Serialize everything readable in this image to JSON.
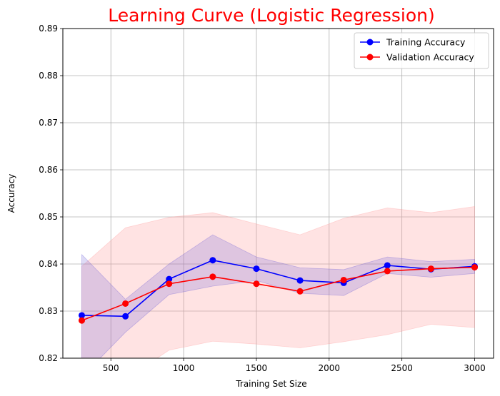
{
  "chart_data": {
    "type": "line",
    "title": "Learning Curve (Logistic Regression)",
    "title_color": "#ff0000",
    "xlabel": "Training Set Size",
    "ylabel": "Accuracy",
    "xlim": [
      170,
      3130
    ],
    "ylim": [
      0.82,
      0.89
    ],
    "x_ticks": [
      500,
      1000,
      1500,
      2000,
      2500,
      3000
    ],
    "y_ticks": [
      0.82,
      0.83,
      0.84,
      0.85,
      0.86,
      0.87,
      0.88,
      0.89
    ],
    "x_tick_labels": [
      "500",
      "1000",
      "1500",
      "2000",
      "2500",
      "3000"
    ],
    "y_tick_labels": [
      "0.82",
      "0.83",
      "0.84",
      "0.85",
      "0.86",
      "0.87",
      "0.88",
      "0.89"
    ],
    "grid": true,
    "legend_position": "top-right",
    "x": [
      300,
      600,
      900,
      1200,
      1500,
      1800,
      2100,
      2400,
      2700,
      3000
    ],
    "series": [
      {
        "name": "Training Accuracy",
        "color": "#0000ff",
        "values": [
          0.8291,
          0.8289,
          0.8368,
          0.8408,
          0.839,
          0.8365,
          0.836,
          0.8397,
          0.8389,
          0.8395
        ],
        "band_lower": [
          0.816,
          0.8255,
          0.8335,
          0.8353,
          0.8365,
          0.8338,
          0.8333,
          0.838,
          0.8372,
          0.838
        ],
        "band_upper": [
          0.842,
          0.8325,
          0.84,
          0.8462,
          0.8415,
          0.8392,
          0.8388,
          0.8415,
          0.8405,
          0.841
        ],
        "band_color": "#6b5bd6"
      },
      {
        "name": "Validation Accuracy",
        "color": "#ff0000",
        "values": [
          0.828,
          0.8316,
          0.8358,
          0.8373,
          0.8358,
          0.8342,
          0.8366,
          0.8385,
          0.839,
          0.8393
        ],
        "band_lower": [
          0.8165,
          0.8155,
          0.8217,
          0.8236,
          0.823,
          0.8222,
          0.8235,
          0.825,
          0.8272,
          0.8265
        ],
        "band_upper": [
          0.8395,
          0.8477,
          0.8499,
          0.8509,
          0.8485,
          0.8462,
          0.8497,
          0.8519,
          0.8509,
          0.8522
        ],
        "band_color": "#ff9999"
      }
    ]
  }
}
